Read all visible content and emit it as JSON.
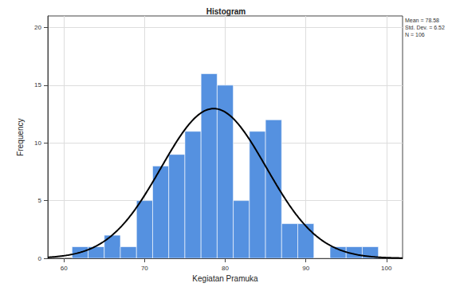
{
  "chart_data": {
    "type": "histogram",
    "title": "Histogram",
    "x_label": "Kegiatan Pramuka",
    "y_label": "Frequency",
    "bins": [
      61,
      63,
      65,
      67,
      69,
      71,
      73,
      75,
      77,
      79,
      81,
      83,
      85,
      87,
      89,
      91,
      93,
      95,
      97,
      99
    ],
    "values": [
      1,
      1,
      2,
      1,
      5,
      8,
      9,
      11,
      16,
      15,
      5,
      11,
      12,
      3,
      3,
      0,
      1,
      1,
      1
    ],
    "color": "#5591e0",
    "xlim": [
      58,
      102
    ],
    "xticks": [
      60,
      70,
      80,
      90,
      100
    ],
    "ylim": [
      0,
      21
    ],
    "yticks": [
      0,
      5,
      10,
      15,
      20
    ],
    "grid": true,
    "normal_curve": {
      "mean": 78.58,
      "std_dev": 6.52,
      "n": 106,
      "color": "#000000",
      "labels": [
        "Mean = 78.58",
        "Std. Dev. = 6.52",
        "N = 106"
      ]
    }
  }
}
